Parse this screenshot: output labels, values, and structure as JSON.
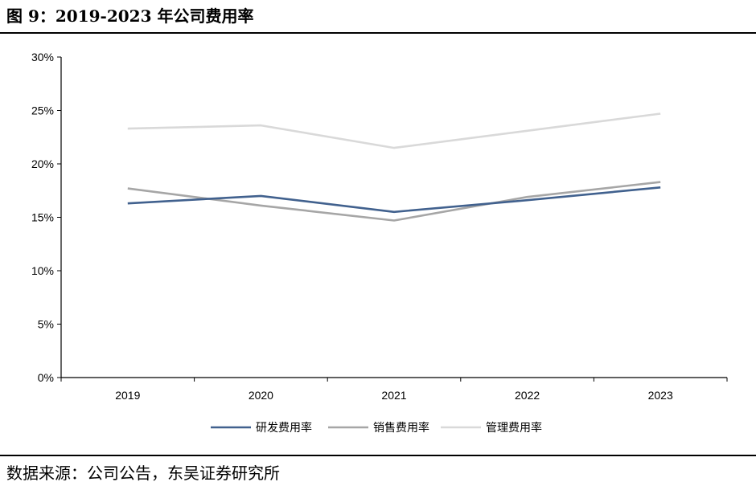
{
  "figure_title": "图 9：2019-2023 年公司费用率",
  "source_note": "数据来源：公司公告，东吴证券研究所",
  "chart_data": {
    "type": "line",
    "title": "",
    "xlabel": "",
    "ylabel": "",
    "categories": [
      "2019",
      "2020",
      "2021",
      "2022",
      "2023"
    ],
    "ylim": [
      0,
      30
    ],
    "yticks": [
      0,
      5,
      10,
      15,
      20,
      25,
      30
    ],
    "ytick_labels": [
      "0%",
      "5%",
      "10%",
      "15%",
      "20%",
      "25%",
      "30%"
    ],
    "grid": false,
    "legend_position": "bottom",
    "series": [
      {
        "name": "研发费用率",
        "color": "#41618e",
        "values": [
          16.3,
          17.0,
          15.5,
          16.6,
          17.8
        ]
      },
      {
        "name": "销售费用率",
        "color": "#a6a6a6",
        "values": [
          17.7,
          16.1,
          14.7,
          16.9,
          18.3
        ]
      },
      {
        "name": "管理费用率",
        "color": "#d9d9d9",
        "values": [
          23.3,
          23.6,
          21.5,
          23.1,
          24.7
        ]
      }
    ]
  }
}
